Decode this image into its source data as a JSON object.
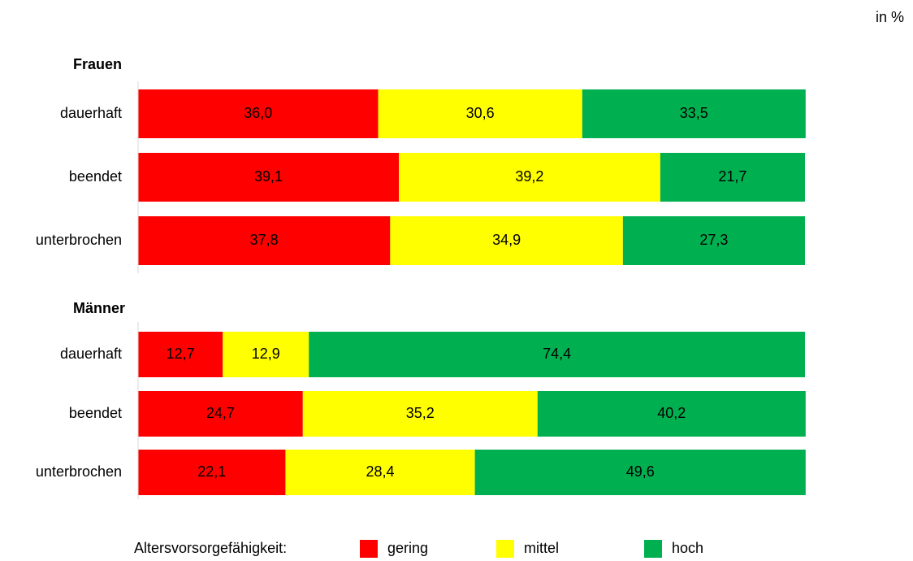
{
  "chart_data": {
    "type": "bar",
    "orientation": "horizontal",
    "stacked": true,
    "unit_label": "in %",
    "legend_title": "Altersvorsorgefähigkeit:",
    "xlim": [
      0,
      100
    ],
    "series": [
      {
        "name": "gering",
        "color": "#ff0000",
        "label_color": "#ffffff"
      },
      {
        "name": "mittel",
        "color": "#ffff00",
        "label_color": "#595959"
      },
      {
        "name": "hoch",
        "color": "#00b050",
        "label_color": "#ffffff"
      }
    ],
    "groups": [
      {
        "title": "Frauen",
        "categories": [
          "dauerhaft",
          "beendet",
          "unterbrochen"
        ],
        "series": [
          {
            "values": [
              36.0,
              39.1,
              37.8
            ],
            "value_labels": [
              "36,0",
              "39,1",
              "37,8"
            ]
          },
          {
            "values": [
              30.6,
              39.2,
              34.9
            ],
            "value_labels": [
              "30,6",
              "39,2",
              "34,9"
            ]
          },
          {
            "values": [
              33.5,
              21.7,
              27.3
            ],
            "value_labels": [
              "33,5",
              "21,7",
              "27,3"
            ]
          }
        ]
      },
      {
        "title": "Männer",
        "categories": [
          "dauerhaft",
          "beendet",
          "unterbrochen"
        ],
        "series": [
          {
            "values": [
              12.7,
              24.7,
              22.1
            ],
            "value_labels": [
              "12,7",
              "24,7",
              "22,1"
            ]
          },
          {
            "values": [
              12.9,
              35.2,
              28.4
            ],
            "value_labels": [
              "12,9",
              "35,2",
              "28,4"
            ]
          },
          {
            "values": [
              74.4,
              40.2,
              49.6
            ],
            "value_labels": [
              "74,4",
              "40,2",
              "49,6"
            ]
          }
        ]
      }
    ]
  }
}
